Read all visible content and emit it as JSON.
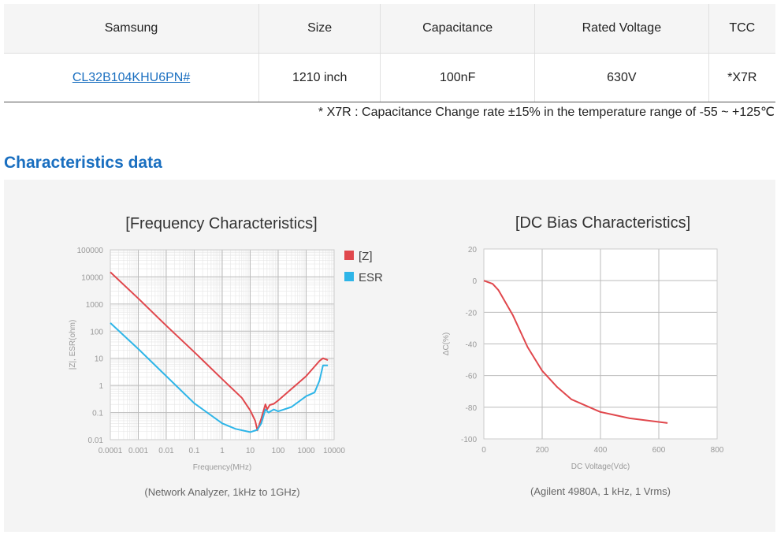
{
  "spec_table": {
    "headers": [
      "Samsung",
      "Size",
      "Capacitance",
      "Rated Voltage",
      "TCC"
    ],
    "row": {
      "part_number": "CL32B104KHU6PN#",
      "size": "1210 inch",
      "capacitance": "100nF",
      "rated_voltage": "630V",
      "tcc": "*X7R"
    }
  },
  "note": "* X7R : Capacitance Change rate ±15%  in the temperature range of -55 ~ +125℃",
  "section_title": "Characteristics data",
  "colors": {
    "accent": "#1a6fc0",
    "z": "#e0474c",
    "esr": "#2eb5e8"
  },
  "chart_data": [
    {
      "type": "line",
      "title": "[Frequency Characteristics]",
      "xlabel": "Frequency(MHz)",
      "ylabel": "|Z|, ESR(ohm)",
      "caption": "(Network Analyzer, 1kHz to 1GHz)",
      "xscale": "log",
      "yscale": "log",
      "xlim": [
        0.0001,
        10000
      ],
      "ylim": [
        0.01,
        100000
      ],
      "xticks": [
        "0.0001",
        "0.001",
        "0.01",
        "0.1",
        "1",
        "10",
        "100",
        "1000",
        "10000"
      ],
      "yticks": [
        "0.01",
        "0.1",
        "1",
        "10",
        "100",
        "1000",
        "10000",
        "100000"
      ],
      "grid": true,
      "legend": "right",
      "series": [
        {
          "name": "[Z]",
          "color": "#e0474c",
          "points": [
            [
              0.0001,
              15000
            ],
            [
              0.001,
              1600
            ],
            [
              0.01,
              160
            ],
            [
              0.1,
              17
            ],
            [
              1,
              1.7
            ],
            [
              5,
              0.35
            ],
            [
              10,
              0.12
            ],
            [
              15,
              0.05
            ],
            [
              18,
              0.022
            ],
            [
              25,
              0.06
            ],
            [
              35,
              0.2
            ],
            [
              40,
              0.13
            ],
            [
              50,
              0.19
            ],
            [
              70,
              0.21
            ],
            [
              100,
              0.28
            ],
            [
              1000,
              2.2
            ],
            [
              3000,
              8
            ],
            [
              4000,
              10
            ],
            [
              6000,
              8.5
            ]
          ]
        },
        {
          "name": "ESR",
          "color": "#2eb5e8",
          "points": [
            [
              0.0001,
              200
            ],
            [
              0.001,
              22
            ],
            [
              0.01,
              2.2
            ],
            [
              0.1,
              0.22
            ],
            [
              1,
              0.04
            ],
            [
              3,
              0.025
            ],
            [
              10,
              0.019
            ],
            [
              18,
              0.023
            ],
            [
              25,
              0.04
            ],
            [
              35,
              0.13
            ],
            [
              45,
              0.1
            ],
            [
              70,
              0.13
            ],
            [
              100,
              0.11
            ],
            [
              300,
              0.16
            ],
            [
              1000,
              0.4
            ],
            [
              2000,
              0.55
            ],
            [
              3000,
              1.5
            ],
            [
              4000,
              5.5
            ],
            [
              6000,
              5.5
            ]
          ]
        }
      ]
    },
    {
      "type": "line",
      "title": "[DC Bias Characteristics]",
      "xlabel": "DC Voltage(Vdc)",
      "ylabel": "ΔC(%)",
      "caption": "(Agilent 4980A, 1 kHz, 1 Vrms)",
      "xlim": [
        0,
        800
      ],
      "ylim": [
        -100,
        20
      ],
      "xticks": [
        "0",
        "200",
        "400",
        "600",
        "800"
      ],
      "yticks": [
        "-100",
        "-80",
        "-60",
        "-40",
        "-20",
        "0",
        "20"
      ],
      "grid": true,
      "series": [
        {
          "color": "#e0474c",
          "points": [
            [
              0,
              0
            ],
            [
              30,
              -2
            ],
            [
              50,
              -6
            ],
            [
              100,
              -22
            ],
            [
              150,
              -42
            ],
            [
              200,
              -57
            ],
            [
              250,
              -67
            ],
            [
              300,
              -75
            ],
            [
              400,
              -83
            ],
            [
              500,
              -87
            ],
            [
              630,
              -90
            ]
          ]
        }
      ]
    }
  ]
}
